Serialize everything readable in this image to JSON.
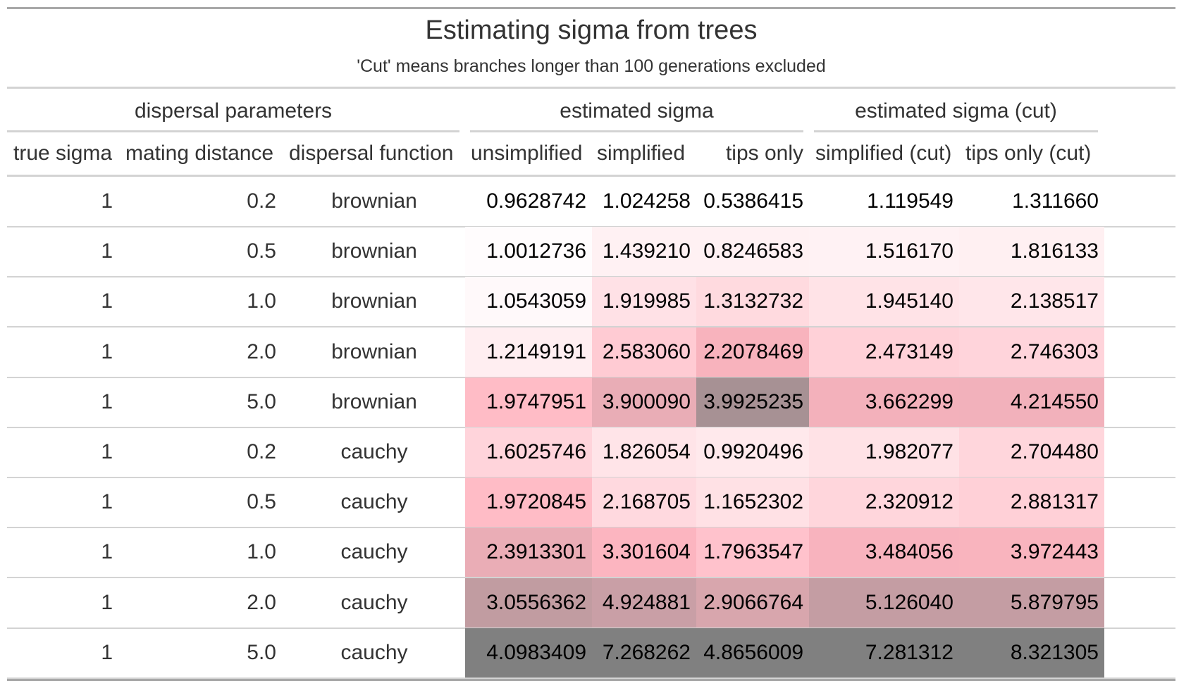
{
  "title": "Estimating sigma from trees",
  "subtitle": "'Cut' means branches longer than 100 generations excluded",
  "spanners": [
    "dispersal parameters",
    "estimated sigma",
    "estimated sigma (cut)"
  ],
  "columns": [
    "true sigma",
    "mating distance",
    "dispersal function",
    "unsimplified",
    "simplified",
    "tips only",
    "simplified (cut)",
    "tips only (cut)"
  ],
  "rows": [
    {
      "true_sigma": "1",
      "mating_distance": "0.2",
      "dispersal_function": "brownian",
      "unsimplified": "0.9628742",
      "simplified": "1.024258",
      "tips_only": "0.5386415",
      "simplified_cut": "1.119549",
      "tips_only_cut": "1.311660"
    },
    {
      "true_sigma": "1",
      "mating_distance": "0.5",
      "dispersal_function": "brownian",
      "unsimplified": "1.0012736",
      "simplified": "1.439210",
      "tips_only": "0.8246583",
      "simplified_cut": "1.516170",
      "tips_only_cut": "1.816133"
    },
    {
      "true_sigma": "1",
      "mating_distance": "1.0",
      "dispersal_function": "brownian",
      "unsimplified": "1.0543059",
      "simplified": "1.919985",
      "tips_only": "1.3132732",
      "simplified_cut": "1.945140",
      "tips_only_cut": "2.138517"
    },
    {
      "true_sigma": "1",
      "mating_distance": "2.0",
      "dispersal_function": "brownian",
      "unsimplified": "1.2149191",
      "simplified": "2.583060",
      "tips_only": "2.2078469",
      "simplified_cut": "2.473149",
      "tips_only_cut": "2.746303"
    },
    {
      "true_sigma": "1",
      "mating_distance": "5.0",
      "dispersal_function": "brownian",
      "unsimplified": "1.9747951",
      "simplified": "3.900090",
      "tips_only": "3.9925235",
      "simplified_cut": "3.662299",
      "tips_only_cut": "4.214550"
    },
    {
      "true_sigma": "1",
      "mating_distance": "0.2",
      "dispersal_function": "cauchy",
      "unsimplified": "1.6025746",
      "simplified": "1.826054",
      "tips_only": "0.9920496",
      "simplified_cut": "1.982077",
      "tips_only_cut": "2.704480"
    },
    {
      "true_sigma": "1",
      "mating_distance": "0.5",
      "dispersal_function": "cauchy",
      "unsimplified": "1.9720845",
      "simplified": "2.168705",
      "tips_only": "1.1652302",
      "simplified_cut": "2.320912",
      "tips_only_cut": "2.881317"
    },
    {
      "true_sigma": "1",
      "mating_distance": "1.0",
      "dispersal_function": "cauchy",
      "unsimplified": "2.3913301",
      "simplified": "3.301604",
      "tips_only": "1.7963547",
      "simplified_cut": "3.484056",
      "tips_only_cut": "3.972443"
    },
    {
      "true_sigma": "1",
      "mating_distance": "2.0",
      "dispersal_function": "cauchy",
      "unsimplified": "3.0556362",
      "simplified": "4.924881",
      "tips_only": "2.9066764",
      "simplified_cut": "5.126040",
      "tips_only_cut": "5.879795"
    },
    {
      "true_sigma": "1",
      "mating_distance": "5.0",
      "dispersal_function": "cauchy",
      "unsimplified": "4.0983409",
      "simplified": "7.268262",
      "tips_only": "4.8656009",
      "simplified_cut": "7.281312",
      "tips_only_cut": "8.321305"
    }
  ],
  "heatmap_colors": {
    "low": "#ffffff",
    "pink": "#ffb6c1",
    "dark": "#808080"
  }
}
